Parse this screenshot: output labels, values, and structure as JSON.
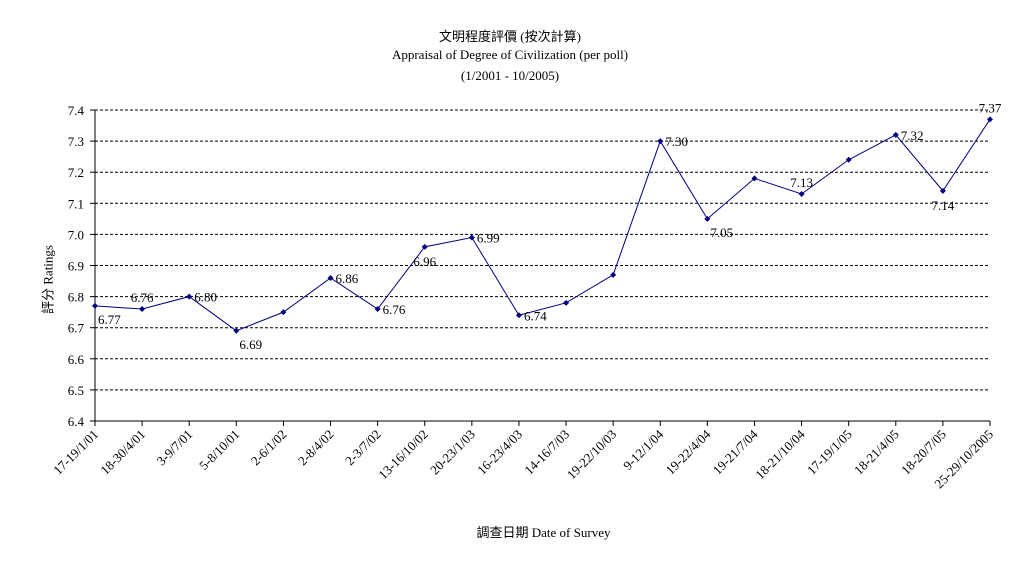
{
  "chart_data": {
    "type": "line",
    "title": "文明程度評價 (按次計算)",
    "subtitle": "Appraisal of Degree of Civilization (per poll)",
    "period": "(1/2001 - 10/2005)",
    "xlabel": "調查日期 Date of Survey",
    "ylabel": "評分 Ratings",
    "ylim": [
      6.4,
      7.4
    ],
    "yticks": [
      "6.4",
      "6.5",
      "6.6",
      "6.7",
      "6.8",
      "6.9",
      "7.0",
      "7.1",
      "7.2",
      "7.3",
      "7.4"
    ],
    "grid": "horizontal dashed",
    "line_color": "#000080",
    "categories": [
      "17-19/1/01",
      "18-30/4/01",
      "3-9/7/01",
      "5-8/10/01",
      "2-6/1/02",
      "2-8/4/02",
      "2-3/7/02",
      "13-16/10/02",
      "20-23/1/03",
      "16-23/4/03",
      "14-16/7/03",
      "19-22/10/03",
      "9-12/1/04",
      "19-22/4/04",
      "19-21/7/04",
      "18-21/10/04",
      "17-19/1/05",
      "18-21/4/05",
      "18-20/7/05",
      "25-29/10/2005"
    ],
    "major_categories": [
      "17-19/1/01",
      "18-30/4/01",
      "3-9/7/01",
      "5-8/10/01",
      "2-6/1/02",
      "2-8/4/02",
      "2-3/7/02",
      "13-16/10/02",
      "20-23/1/03",
      "16-23/4/03",
      "14-16/7/03",
      "19-22/10/03",
      "9-12/1/04",
      "19-22/4/04",
      "19-21/7/04",
      "18-21/10/04",
      "17-19/1/05",
      "18-21/4/05",
      "18-20/7/05",
      "25-29/10/2005"
    ],
    "points": [
      {
        "x": 0,
        "y": 6.77
      },
      {
        "x": 1,
        "y": 6.76
      },
      {
        "x": 2,
        "y": 6.8
      },
      {
        "x": 3,
        "y": 6.69
      },
      {
        "x": 4,
        "y": 6.75
      },
      {
        "x": 5,
        "y": 6.86
      },
      {
        "x": 6,
        "y": 6.76
      },
      {
        "x": 7,
        "y": 6.96
      },
      {
        "x": 8,
        "y": 6.99
      },
      {
        "x": 9,
        "y": 6.74
      },
      {
        "x": 10,
        "y": 6.78
      },
      {
        "x": 11,
        "y": 6.87
      },
      {
        "x": 12,
        "y": 7.3
      },
      {
        "x": 13,
        "y": 7.05
      },
      {
        "x": 14,
        "y": 7.18
      },
      {
        "x": 15,
        "y": 7.13
      },
      {
        "x": 16,
        "y": 7.24
      },
      {
        "x": 17,
        "y": 7.32
      },
      {
        "x": 18,
        "y": 7.14
      },
      {
        "x": 19,
        "y": 7.37
      }
    ],
    "data_labels": [
      {
        "x": 0,
        "text": "6.77",
        "pos": "below-right"
      },
      {
        "x": 1,
        "text": "6.76",
        "pos": "above"
      },
      {
        "x": 2,
        "text": "6.80",
        "pos": "right"
      },
      {
        "x": 3,
        "text": "6.69",
        "pos": "below-right"
      },
      {
        "x": 5,
        "text": "6.86",
        "pos": "right"
      },
      {
        "x": 6,
        "text": "6.76",
        "pos": "right"
      },
      {
        "x": 7,
        "text": "6.96",
        "pos": "below"
      },
      {
        "x": 8,
        "text": "6.99",
        "pos": "right"
      },
      {
        "x": 9,
        "text": "6.74",
        "pos": "right"
      },
      {
        "x": 12,
        "text": "7.30",
        "pos": "right"
      },
      {
        "x": 13,
        "text": "7.05",
        "pos": "below-right"
      },
      {
        "x": 15,
        "text": "7.13",
        "pos": "above"
      },
      {
        "x": 17,
        "text": "7.32",
        "pos": "right"
      },
      {
        "x": 18,
        "text": "7.14",
        "pos": "below"
      },
      {
        "x": 19,
        "text": "7.37",
        "pos": "above"
      }
    ]
  }
}
